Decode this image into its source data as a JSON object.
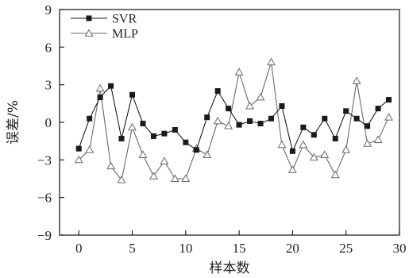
{
  "chart_data": {
    "type": "line",
    "xlabel": "样本数",
    "ylabel": "误差/%",
    "xlim": [
      -1.8,
      30
    ],
    "ylim": [
      -9,
      9
    ],
    "xticks": [
      0,
      5,
      10,
      15,
      20,
      25,
      30
    ],
    "yticks": [
      9,
      6,
      3,
      0,
      -3,
      -6,
      -9
    ],
    "legend_position": "top-left",
    "x": [
      0,
      1,
      2,
      3,
      4,
      5,
      6,
      7,
      8,
      9,
      10,
      11,
      12,
      13,
      14,
      15,
      16,
      17,
      18,
      19,
      20,
      21,
      22,
      23,
      24,
      25,
      26,
      27,
      28,
      29
    ],
    "series": [
      {
        "name": "SVR",
        "marker": "filled-square",
        "color": "#1a1a1a",
        "values": [
          -2.1,
          0.3,
          2.0,
          2.9,
          -1.3,
          2.2,
          -0.1,
          -1.1,
          -0.9,
          -0.6,
          -1.6,
          -2.2,
          0.4,
          2.5,
          1.1,
          -0.2,
          0.1,
          -0.1,
          0.3,
          1.3,
          -2.3,
          -0.4,
          -1.0,
          0.3,
          -1.3,
          0.9,
          0.3,
          -0.3,
          1.1,
          1.8
        ]
      },
      {
        "name": "MLP",
        "marker": "open-triangle",
        "color": "#6a6a6a",
        "values": [
          -3.0,
          -2.2,
          2.7,
          -3.5,
          -4.6,
          -0.4,
          -2.6,
          -4.3,
          -3.1,
          -4.5,
          -4.5,
          -2.1,
          -2.6,
          0.1,
          -0.3,
          4.0,
          1.3,
          2.0,
          4.8,
          -1.8,
          -3.8,
          -1.8,
          -2.8,
          -2.6,
          -4.2,
          -2.2,
          3.3,
          -1.7,
          -1.4,
          0.4
        ]
      }
    ]
  }
}
